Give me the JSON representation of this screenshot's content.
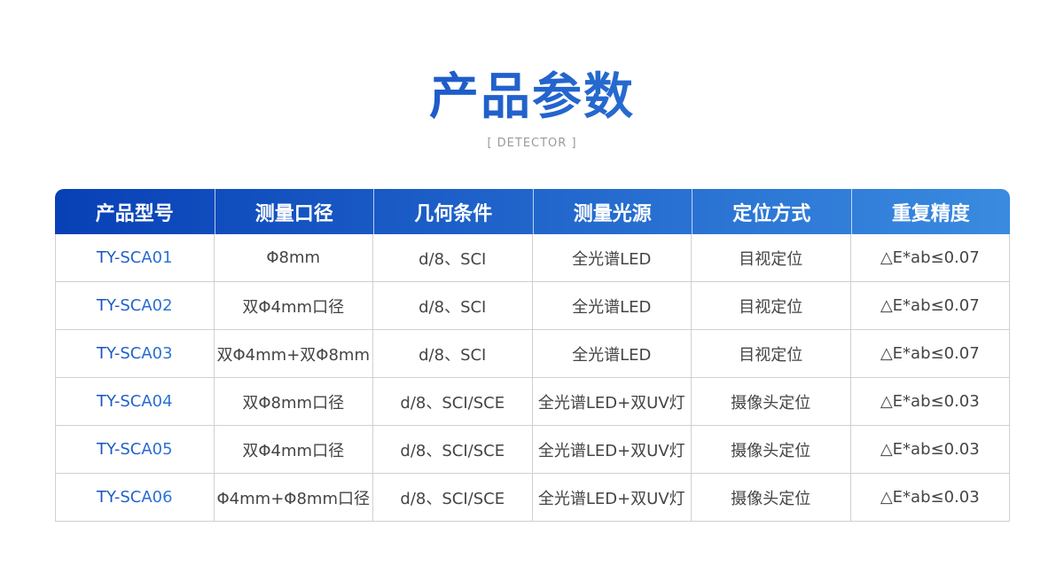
{
  "title": "产品参数",
  "subtitle": "[ DETECTOR ]",
  "accent_colors": [
    "#0840b6",
    "#3a8be0"
  ],
  "table": {
    "headers": [
      "产品型号",
      "测量口径",
      "几何条件",
      "测量光源",
      "定位方式",
      "重复精度"
    ],
    "rows": [
      [
        "TY-SCA01",
        "Φ8mm",
        "d/8、SCI",
        "全光谱LED",
        "目视定位",
        "△E*ab≤0.07"
      ],
      [
        "TY-SCA02",
        "双Φ4mm口径",
        "d/8、SCI",
        "全光谱LED",
        "目视定位",
        "△E*ab≤0.07"
      ],
      [
        "TY-SCA03",
        "双Φ4mm+双Φ8mm",
        "d/8、SCI",
        "全光谱LED",
        "目视定位",
        "△E*ab≤0.07"
      ],
      [
        "TY-SCA04",
        "双Φ8mm口径",
        "d/8、SCI/SCE",
        "全光谱LED+双UV灯",
        "摄像头定位",
        "△E*ab≤0.03"
      ],
      [
        "TY-SCA05",
        "双Φ4mm口径",
        "d/8、SCI/SCE",
        "全光谱LED+双UV灯",
        "摄像头定位",
        "△E*ab≤0.03"
      ],
      [
        "TY-SCA06",
        "Φ4mm+Φ8mm口径",
        "d/8、SCI/SCE",
        "全光谱LED+双UV灯",
        "摄像头定位",
        "△E*ab≤0.03"
      ]
    ]
  }
}
